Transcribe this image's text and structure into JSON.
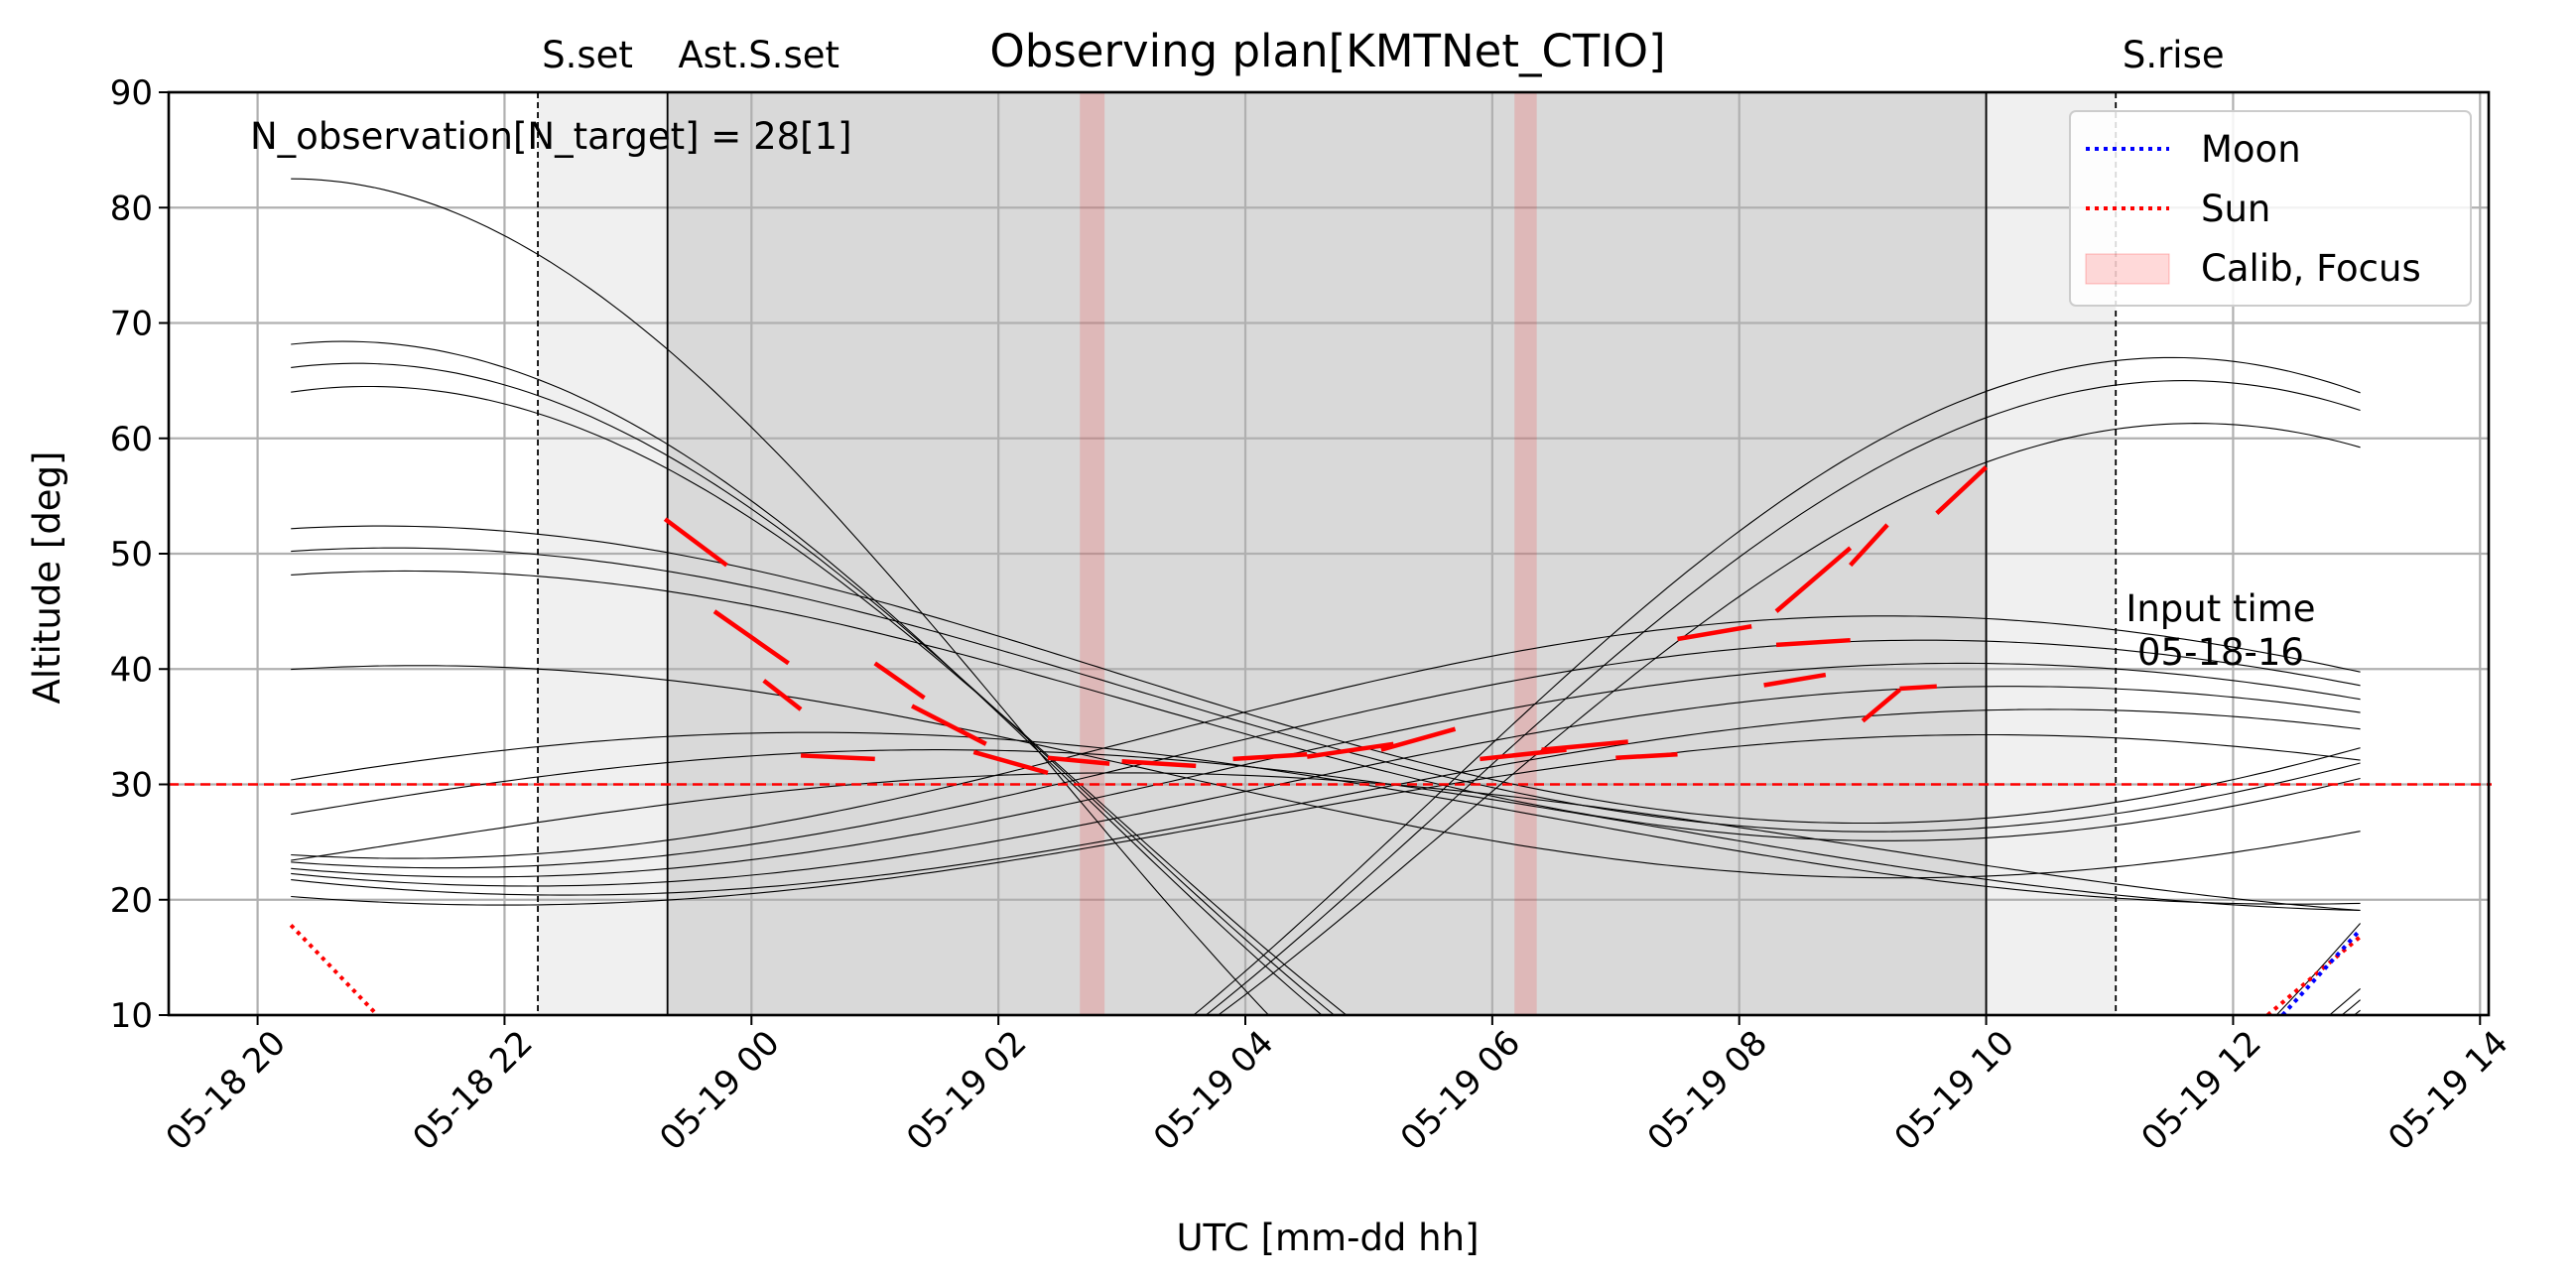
{
  "chart_data": {
    "type": "line",
    "title": "Observing plan[KMTNet_CTIO]",
    "xlabel": "UTC [mm-dd hh]",
    "ylabel": "Altitude [deg]",
    "xlim_hours": [
      -0.72,
      18.07
    ],
    "ylim": [
      10,
      90
    ],
    "x_ticks": [
      {
        "h": 0,
        "label": "05-18 20"
      },
      {
        "h": 2,
        "label": "05-18 22"
      },
      {
        "h": 4,
        "label": "05-19 00"
      },
      {
        "h": 6,
        "label": "05-19 02"
      },
      {
        "h": 8,
        "label": "05-19 04"
      },
      {
        "h": 10,
        "label": "05-19 06"
      },
      {
        "h": 12,
        "label": "05-19 08"
      },
      {
        "h": 14,
        "label": "05-19 10"
      },
      {
        "h": 16,
        "label": "05-19 12"
      },
      {
        "h": 18,
        "label": "05-19 14"
      }
    ],
    "y_ticks": [
      10,
      20,
      30,
      40,
      50,
      60,
      70,
      80,
      90
    ],
    "grid": true,
    "annotation": "N_observation[N_target] = 28[1]",
    "input_time_label": [
      "Input time",
      "05-18-16"
    ],
    "events": [
      {
        "label": "S.set",
        "h": 2.27,
        "style": "dashed"
      },
      {
        "label": "Ast.S.set",
        "h": 3.32,
        "style": "solid"
      },
      {
        "label": "S.rise",
        "h": 15.05,
        "style": "dashed"
      }
    ],
    "twilight_end_h": 14.0,
    "calib_bands": [
      [
        6.66,
        6.86
      ],
      [
        10.18,
        10.36
      ]
    ],
    "altitude_limit": 30,
    "legend": {
      "position": "upper right",
      "entries": [
        {
          "label": "Moon",
          "color": "#0000ff",
          "style": "dotted"
        },
        {
          "label": "Sun",
          "color": "#ff0000",
          "style": "dotted"
        },
        {
          "label": "Calib, Focus",
          "color": "#ff0000",
          "style": "band"
        }
      ]
    },
    "x_range_curves": [
      0.27,
      17.03
    ],
    "target_tracks": [
      {
        "h0": 0.27,
        "peak": 82.5,
        "tpeak": 0.27
      },
      {
        "h0": 0.27,
        "peak": 68.4,
        "tpeak": 0.7
      },
      {
        "h0": 0.27,
        "peak": 66.5,
        "tpeak": 0.8
      },
      {
        "h0": 0.27,
        "peak": 64.5,
        "tpeak": 0.9
      },
      {
        "h0": 0.27,
        "peak": 52.4,
        "tpeak": 1.0
      },
      {
        "h0": 0.27,
        "peak": 50.5,
        "tpeak": 1.1
      },
      {
        "h0": 0.27,
        "peak": 48.5,
        "tpeak": 1.2
      },
      {
        "h0": 0.27,
        "peak": 40.3,
        "tpeak": 1.3
      },
      {
        "h0": 0.27,
        "peak": 67.0,
        "tpeak": 15.5
      },
      {
        "h0": 0.27,
        "peak": 65.0,
        "tpeak": 15.6
      },
      {
        "h0": 0.27,
        "peak": 61.3,
        "tpeak": 15.7
      },
      {
        "h0": 0.27,
        "peak": 44.6,
        "tpeak": 13.2
      },
      {
        "h0": 0.27,
        "peak": 42.5,
        "tpeak": 13.5
      },
      {
        "h0": 0.27,
        "peak": 40.5,
        "tpeak": 13.8
      },
      {
        "h0": 0.27,
        "peak": 38.5,
        "tpeak": 14.2
      },
      {
        "h0": 0.27,
        "peak": 36.5,
        "tpeak": 14.5
      },
      {
        "h0": 0.27,
        "peak": 34.5,
        "tpeak": 4.5
      },
      {
        "h0": 0.27,
        "peak": 33.0,
        "tpeak": 5.5
      },
      {
        "h0": 0.27,
        "peak": 34.3,
        "tpeak": 14.0
      },
      {
        "h0": 0.27,
        "peak": 31.0,
        "tpeak": 7.0
      }
    ],
    "scheduled_segments": [
      [
        [
          3.3,
          53
        ],
        [
          3.8,
          49
        ]
      ],
      [
        [
          3.7,
          45
        ],
        [
          4.3,
          40.5
        ]
      ],
      [
        [
          4.1,
          39
        ],
        [
          4.4,
          36.5
        ]
      ],
      [
        [
          4.4,
          32.5
        ],
        [
          5.0,
          32.2
        ]
      ],
      [
        [
          5.0,
          40.5
        ],
        [
          5.4,
          37.5
        ]
      ],
      [
        [
          5.3,
          36.8
        ],
        [
          5.9,
          33.5
        ]
      ],
      [
        [
          5.8,
          32.8
        ],
        [
          6.4,
          31.0
        ]
      ],
      [
        [
          6.4,
          32.3
        ],
        [
          6.9,
          31.8
        ]
      ],
      [
        [
          7.0,
          32.0
        ],
        [
          7.6,
          31.6
        ]
      ],
      [
        [
          7.9,
          32.2
        ],
        [
          8.5,
          32.6
        ]
      ],
      [
        [
          8.5,
          32.4
        ],
        [
          9.2,
          33.5
        ]
      ],
      [
        [
          9.1,
          33.0
        ],
        [
          9.7,
          34.8
        ]
      ],
      [
        [
          9.9,
          32.2
        ],
        [
          10.6,
          33.0
        ]
      ],
      [
        [
          10.4,
          33.0
        ],
        [
          11.1,
          33.7
        ]
      ],
      [
        [
          11.0,
          32.3
        ],
        [
          11.5,
          32.6
        ]
      ],
      [
        [
          11.5,
          42.6
        ],
        [
          12.1,
          43.7
        ]
      ],
      [
        [
          12.2,
          38.6
        ],
        [
          12.7,
          39.5
        ]
      ],
      [
        [
          12.3,
          42.1
        ],
        [
          12.9,
          42.5
        ]
      ],
      [
        [
          12.3,
          45.0
        ],
        [
          12.9,
          50.5
        ]
      ],
      [
        [
          12.9,
          49.0
        ],
        [
          13.2,
          52.5
        ]
      ],
      [
        [
          13.0,
          35.5
        ],
        [
          13.3,
          38.2
        ]
      ],
      [
        [
          13.3,
          38.3
        ],
        [
          13.6,
          38.5
        ]
      ],
      [
        [
          13.6,
          53.5
        ],
        [
          14.0,
          57.5
        ]
      ]
    ],
    "sun_tracks": [
      [
        [
          0.27,
          17.8
        ],
        [
          0.97,
          10
        ]
      ],
      [
        [
          16.28,
          10
        ],
        [
          17.03,
          16.8
        ]
      ]
    ],
    "moon_tracks": [
      [
        [
          16.4,
          10
        ],
        [
          17.03,
          17.4
        ]
      ]
    ]
  }
}
